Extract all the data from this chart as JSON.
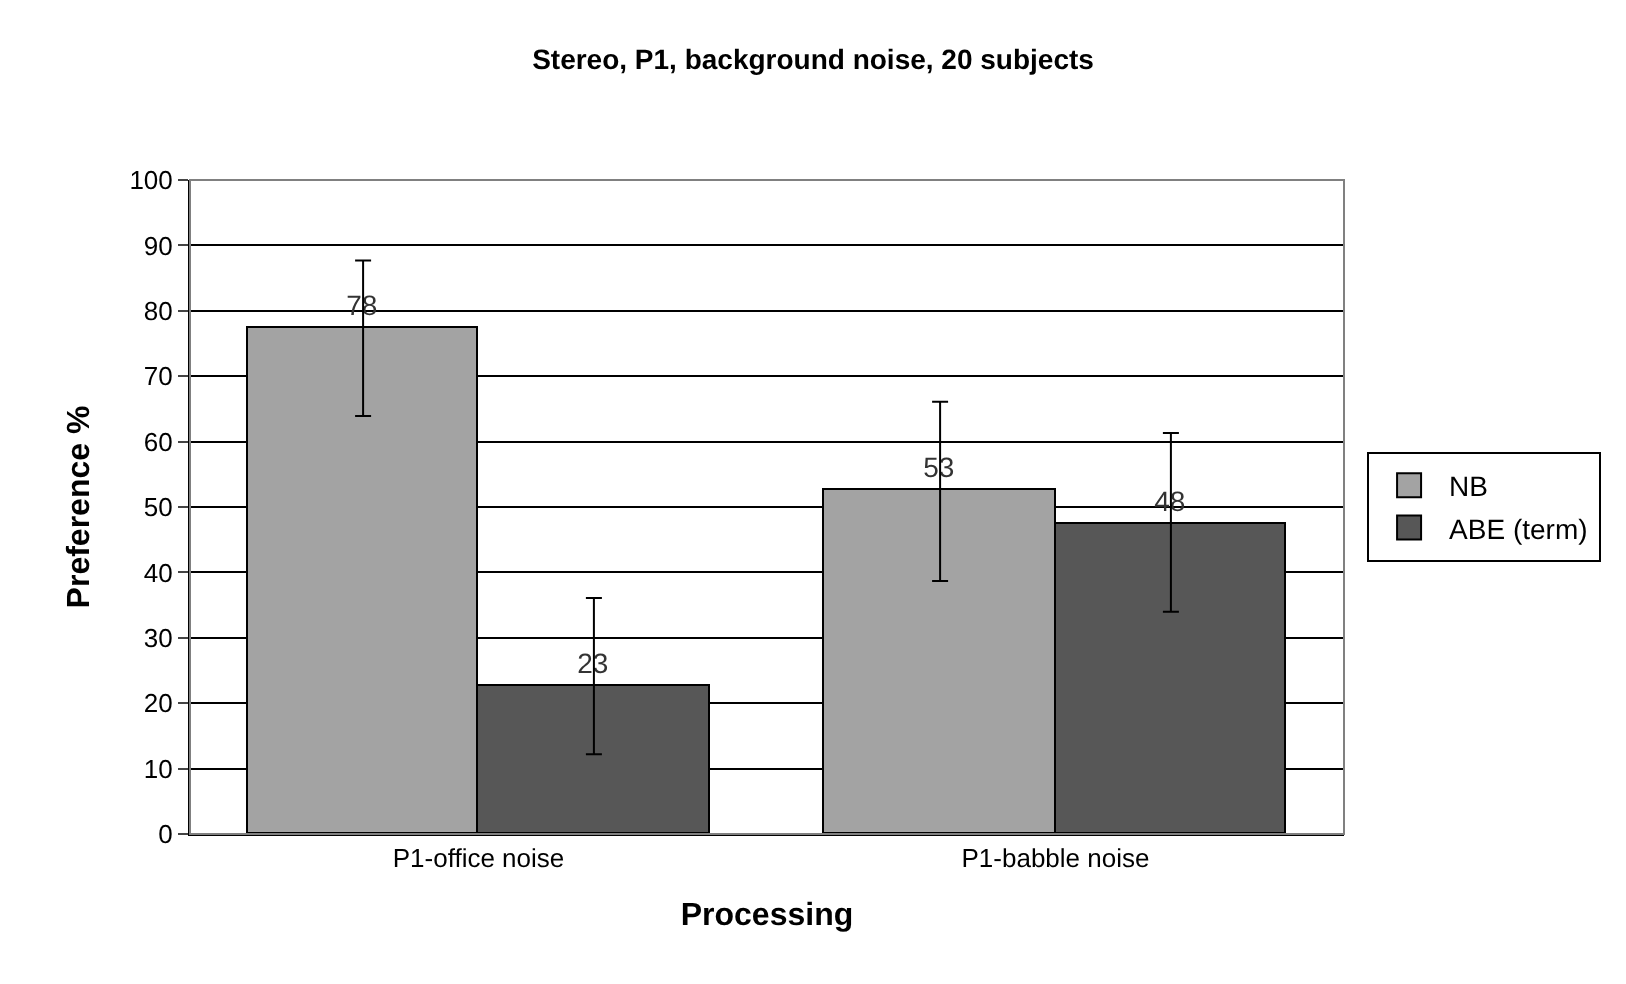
{
  "chart_data": {
    "type": "bar",
    "title": "Stereo, P1, background noise, 20 subjects",
    "xlabel": "Processing",
    "ylabel": "Preference %",
    "categories": [
      "P1-office noise",
      "P1-babble noise"
    ],
    "series": [
      {
        "name": "NB",
        "color": "#a3a3a3",
        "values": [
          77.5,
          52.5
        ],
        "errors": [
          [
            63.9,
            87.7
          ],
          [
            38.7,
            66.1
          ]
        ],
        "value_labels": [
          "78",
          "53"
        ]
      },
      {
        "name": "ABE (term)",
        "color": "#575757",
        "values": [
          22.5,
          47.5
        ],
        "errors": [
          [
            12.2,
            36.1
          ],
          [
            34.0,
            61.3
          ]
        ],
        "value_labels": [
          "23",
          "48"
        ]
      }
    ],
    "ylim": [
      0,
      100
    ],
    "yticks": [
      0,
      10,
      20,
      30,
      40,
      50,
      60,
      70,
      80,
      90,
      100
    ],
    "grid": "y",
    "legend": "right"
  }
}
